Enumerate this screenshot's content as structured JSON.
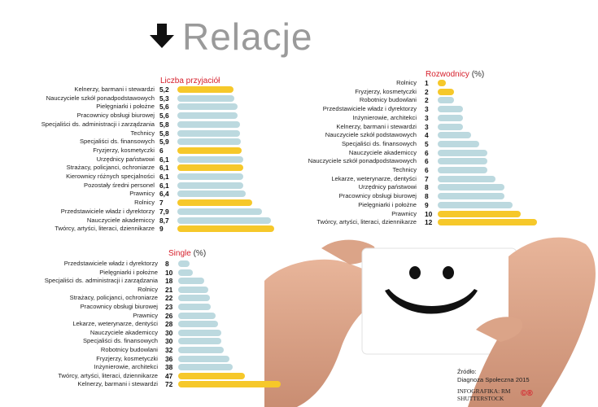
{
  "title": "Relacje",
  "colors": {
    "highlight": "#f6c82a",
    "base": "#bcd9df",
    "accent": "#d6202c"
  },
  "chart_data": [
    {
      "type": "bar",
      "title": "Liczba przyjaciół",
      "unit": "",
      "categories": [
        "Kelnerzy, barmani i stewardzi",
        "Nauczyciele szkół ponadpodstawowych",
        "Pielęgniarki i położne",
        "Pracownicy obsługi biurowej",
        "Specjaliści ds. administracji i zarządzania",
        "Technicy",
        "Specjaliści ds. finansowych",
        "Fryzjerzy, kosmetyczki",
        "Urzędnicy państwowi",
        "Strażacy, policjanci, ochroniarze",
        "Kierownicy różnych specjalności",
        "Pozostały średni personel",
        "Prawnicy",
        "Rolnicy",
        "Przedstawiciele władz i dyrektorzy",
        "Nauczyciele akademiccy",
        "Twórcy, artyści, literaci, dziennikarze"
      ],
      "labels": [
        "5,2",
        "5,3",
        "5,6",
        "5,6",
        "5,8",
        "5,8",
        "5,9",
        "6",
        "6,1",
        "6,1",
        "6,1",
        "6,1",
        "6,4",
        "7",
        "7,9",
        "8,7",
        "9"
      ],
      "values": [
        5.2,
        5.3,
        5.6,
        5.6,
        5.8,
        5.8,
        5.9,
        6,
        6.1,
        6.1,
        6.1,
        6.1,
        6.4,
        7,
        7.9,
        8.7,
        9
      ],
      "highlighted": [
        true,
        false,
        false,
        false,
        false,
        false,
        false,
        true,
        false,
        true,
        false,
        false,
        false,
        true,
        false,
        false,
        true
      ]
    },
    {
      "type": "bar",
      "title": "Rozwodnicy",
      "unit": "(%)",
      "categories": [
        "Rolnicy",
        "Fryzjerzy, kosmetyczki",
        "Robotnicy budowlani",
        "Przedstawiciele władz i dyrektorzy",
        "Inżynierowie, architekci",
        "Kelnerzy, barmani i stewardzi",
        "Nauczyciele szkół podstawowych",
        "Specjaliści ds. finansowych",
        "Nauczyciele akademiccy",
        "Nauczyciele szkół ponadpodstawowych",
        "Technicy",
        "Lekarze, weterynarze, dentyści",
        "Urzędnicy państwowi",
        "Pracownicy obsługi biurowej",
        "Pielęgniarki i położne",
        "Prawnicy",
        "Twórcy, artyści, literaci, dziennikarze"
      ],
      "labels": [
        "1",
        "2",
        "2",
        "3",
        "3",
        "3",
        "4",
        "5",
        "6",
        "6",
        "6",
        "7",
        "8",
        "8",
        "9",
        "10",
        "12"
      ],
      "values": [
        1,
        2,
        2,
        3,
        3,
        3,
        4,
        5,
        6,
        6,
        6,
        7,
        8,
        8,
        9,
        10,
        12
      ],
      "highlighted": [
        true,
        true,
        false,
        false,
        false,
        false,
        false,
        false,
        false,
        false,
        false,
        false,
        false,
        false,
        false,
        true,
        true
      ]
    },
    {
      "type": "bar",
      "title": "Single",
      "unit": "(%)",
      "categories": [
        "Przedstawiciele władz i dyrektorzy",
        "Pielęgniarki i położne",
        "Specjaliści ds. administracji i zarządzania",
        "Rolnicy",
        "Strażacy, policjanci, ochroniarze",
        "Pracownicy obsługi biurowej",
        "Prawnicy",
        "Lekarze, weterynarze, dentyści",
        "Nauczyciele akademiccy",
        "Specjaliści ds. finansowych",
        "Robotnicy budowlani",
        "Fryzjerzy, kosmetyczki",
        "Inżynierowie, architekci",
        "Twórcy, artyści, literaci, dziennikarze",
        "Kelnerzy, barmani i stewardzi"
      ],
      "labels": [
        "8",
        "10",
        "18",
        "21",
        "22",
        "23",
        "26",
        "28",
        "30",
        "30",
        "32",
        "36",
        "38",
        "47",
        "72"
      ],
      "values": [
        8,
        10,
        18,
        21,
        22,
        23,
        26,
        28,
        30,
        30,
        32,
        36,
        38,
        47,
        72
      ],
      "highlighted": [
        false,
        false,
        false,
        false,
        false,
        false,
        false,
        false,
        false,
        false,
        false,
        false,
        false,
        true,
        true
      ]
    }
  ],
  "source": {
    "label": "Źródło:",
    "name": "Diagnoza Społeczna 2015"
  },
  "credit": {
    "infographic": "INFOGRAFIKA: RM",
    "photo": "SHUTTERSTOCK"
  },
  "icons": [
    "arrow-down-icon",
    "smiley-icon",
    "cc-icon"
  ],
  "cc_symbols": "©®"
}
